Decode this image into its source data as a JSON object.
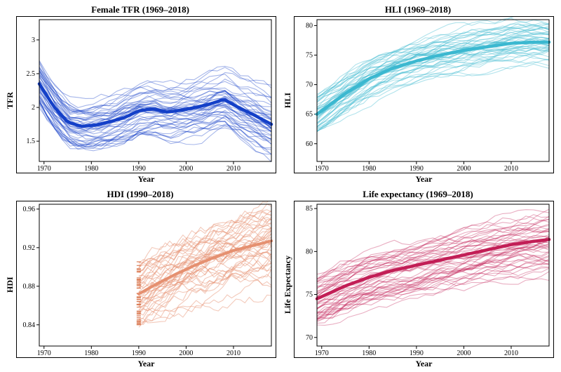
{
  "panels": [
    {
      "id": "tfr",
      "title": "Female TFR (1969–2018)",
      "xlabel": "Year",
      "ylabel": "TFR",
      "type": "line",
      "xlim": [
        1969,
        2018
      ],
      "ylim": [
        1.2,
        3.3
      ],
      "xticks": [
        1970,
        1980,
        1990,
        2000,
        2010
      ],
      "yticks": [
        1.5,
        2.0,
        2.5,
        3.0
      ],
      "line_color": "#1440c8",
      "line_opacity": 0.38,
      "line_width": 1.1,
      "bold_line_width": 4.5,
      "background_color": "#ffffff",
      "n_thin_lines": 48,
      "thin_noise": 0.25,
      "mean_series": {
        "x": [
          1969,
          1972,
          1975,
          1978,
          1981,
          1984,
          1987,
          1990,
          1993,
          1996,
          1999,
          2002,
          2005,
          2008,
          2011,
          2014,
          2018
        ],
        "y": [
          2.35,
          2.02,
          1.78,
          1.72,
          1.74,
          1.79,
          1.85,
          1.95,
          1.98,
          1.93,
          1.96,
          2.0,
          2.05,
          2.12,
          2.0,
          1.9,
          1.75
        ]
      }
    },
    {
      "id": "hli",
      "title": "HLI (1969–2018)",
      "xlabel": "Year",
      "ylabel": "HLI",
      "type": "line",
      "xlim": [
        1969,
        2018
      ],
      "ylim": [
        57,
        81
      ],
      "xticks": [
        1970,
        1980,
        1990,
        2000,
        2010
      ],
      "yticks": [
        60,
        65,
        70,
        75,
        80
      ],
      "line_color": "#3bb8d0",
      "line_opacity": 0.4,
      "line_width": 1.1,
      "bold_line_width": 4.5,
      "background_color": "#ffffff",
      "n_thin_lines": 48,
      "thin_noise": 2.2,
      "mean_series": {
        "x": [
          1969,
          1975,
          1980,
          1985,
          1990,
          1995,
          2000,
          2005,
          2010,
          2015,
          2018
        ],
        "y": [
          65,
          68.5,
          71,
          72.8,
          74,
          75,
          75.8,
          76.4,
          77,
          77.2,
          77.2
        ]
      }
    },
    {
      "id": "hdi",
      "title": "HDI (1990–2018)",
      "xlabel": "Year",
      "ylabel": "HDI",
      "type": "line_with_rug",
      "xlim": [
        1969,
        2018
      ],
      "ylim": [
        0.818,
        0.965
      ],
      "xticks": [
        1970,
        1980,
        1990,
        2000,
        2010
      ],
      "yticks": [
        0.84,
        0.88,
        0.92,
        0.96
      ],
      "ytick_fmt": 2,
      "line_color": "#e59070",
      "line_opacity": 0.48,
      "line_width": 1.1,
      "bold_line_width": 4.0,
      "background_color": "#ffffff",
      "n_thin_lines": 45,
      "thin_noise": 0.024,
      "rug_x": 1990,
      "rug_color": "#d97850",
      "mean_series": {
        "x": [
          1990,
          1994,
          1998,
          2002,
          2006,
          2010,
          2014,
          2018
        ],
        "y": [
          0.872,
          0.883,
          0.893,
          0.902,
          0.91,
          0.917,
          0.922,
          0.927
        ]
      }
    },
    {
      "id": "life",
      "title": "Life expectancy (1969–2018)",
      "xlabel": "Year",
      "ylabel": "Life Expectancy",
      "type": "line",
      "xlim": [
        1969,
        2018
      ],
      "ylim": [
        69,
        85.5
      ],
      "xticks": [
        1970,
        1980,
        1990,
        2000,
        2010
      ],
      "yticks": [
        70,
        75,
        80,
        85
      ],
      "line_color": "#c21e56",
      "line_opacity": 0.36,
      "line_width": 1.1,
      "bold_line_width": 4.5,
      "background_color": "#ffffff",
      "n_thin_lines": 50,
      "thin_noise": 1.9,
      "mean_series": {
        "x": [
          1969,
          1975,
          1980,
          1985,
          1990,
          1995,
          2000,
          2005,
          2010,
          2015,
          2018
        ],
        "y": [
          74.5,
          76,
          77,
          77.8,
          78.4,
          79,
          79.6,
          80.2,
          80.8,
          81.2,
          81.4
        ]
      }
    }
  ],
  "title_fontsize": 13,
  "label_fontsize": 12,
  "tick_fontsize": 10
}
